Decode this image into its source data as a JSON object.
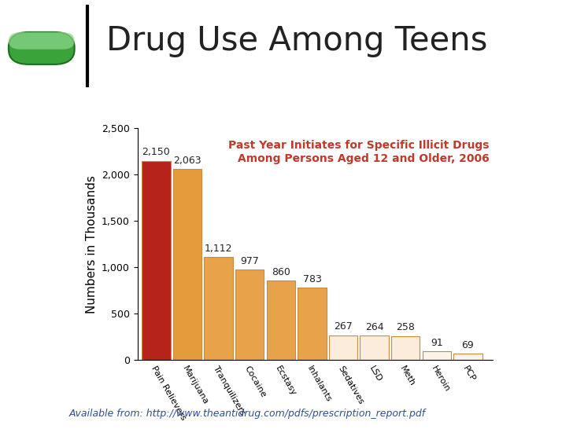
{
  "chart_data": {
    "type": "bar",
    "title": "Drug Use Among Teens",
    "subtitle": "Past Year Initiates for Specific Illicit Drugs Among Persons Aged 12 and Older, 2006",
    "y_label": "Numbers in Thousands",
    "annotations": [
      "Available from: http://www.theantidrug.com/pdfs/prescription_report.pdf"
    ],
    "categories": [
      "Pain Relievers",
      "Marijuana",
      "Tranquilizers",
      "Cocaine",
      "Ecstasy",
      "Inhalants",
      "Sedatives",
      "LSD",
      "Meth",
      "Heroin",
      "PCP"
    ],
    "values": [
      2150,
      2063,
      1112,
      977,
      860,
      783,
      267,
      264,
      258,
      91,
      69
    ],
    "value_labels": [
      "2,150",
      "2,063",
      "1,112",
      "977",
      "860",
      "783",
      "267",
      "264",
      "258",
      "91",
      "69"
    ],
    "colors": [
      "#b5231b",
      "#e59a3c",
      "#e8a24a",
      "#e8a24a",
      "#e8a24a",
      "#e8a24a",
      "#fbecdc",
      "#fbecdc",
      "#fbecdc",
      "#fdf3ea",
      "#fdf3ea"
    ],
    "data_labels": true,
    "ylim": [
      0,
      2500
    ],
    "yticks": [
      0,
      500,
      {
        "value": 1000,
        "label": "1,000"
      },
      {
        "value": 1500,
        "label": "1,500"
      },
      {
        "value": 2000,
        "label": "2,000"
      },
      {
        "value": 2500,
        "label": "2,500"
      }
    ],
    "grid": false
  }
}
